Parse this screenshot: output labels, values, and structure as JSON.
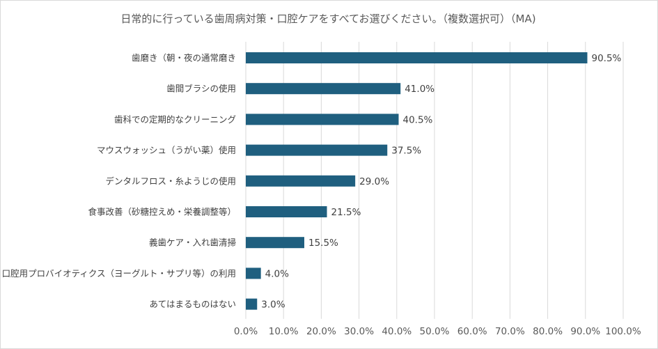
{
  "title": "日常的に行っている歯周病対策・口腔ケアをすべてお選びください。（複数選択可）（MA)",
  "chart_data": {
    "type": "bar",
    "orientation": "horizontal",
    "title": "日常的に行っている歯周病対策・口腔ケアをすべてお選びください。（複数選択可）（MA)",
    "categories": [
      "歯磨き（朝・夜の通常磨き",
      "歯間ブラシの使用",
      "歯科での定期的なクリーニング",
      "マウスウォッシュ（うがい薬）使用",
      "デンタルフロス・糸ようじの使用",
      "食事改善（砂糖控えめ・栄養調整等）",
      "義歯ケア・入れ歯清掃",
      "口腔用プロバイオティクス（ヨーグルト・サプリ等）の利用",
      "あてはまるものはない"
    ],
    "values": [
      90.5,
      41.0,
      40.5,
      37.5,
      29.0,
      21.5,
      15.5,
      4.0,
      3.0
    ],
    "value_labels": [
      "90.5%",
      "41.0%",
      "40.5%",
      "37.5%",
      "29.0%",
      "21.5%",
      "15.5%",
      "4.0%",
      "3.0%"
    ],
    "xlim": [
      0,
      100
    ],
    "xticks": [
      "0.0%",
      "10.0%",
      "20.0%",
      "30.0%",
      "40.0%",
      "50.0%",
      "60.0%",
      "70.0%",
      "80.0%",
      "90.0%",
      "100.0%"
    ],
    "grid": true,
    "bar_color": "#1f5f7f",
    "grid_color": "#d9d9d9"
  }
}
